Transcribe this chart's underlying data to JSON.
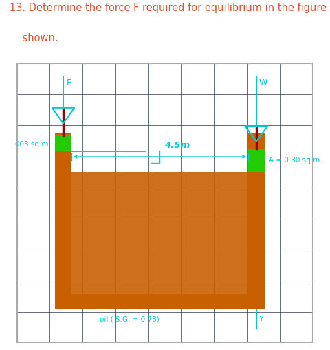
{
  "title_line1": "13. Determine the force F required for equilibrium in the figure",
  "title_line2": "    shown.",
  "title_color": "#e05030",
  "title_fontsize": 10.5,
  "bg_color": "#1b2a38",
  "border_color": "#aaaaaa",
  "cyan_color": "#00c8d4",
  "orange_color": "#c86000",
  "green_color": "#22cc00",
  "dark_red_color": "#990000",
  "label_003": "003 sq.m.",
  "label_A": "A = 0.30 sq.m.",
  "label_45m": "4.5m",
  "label_oil": "oil ( S.G. = 0.78)",
  "label_F": "F",
  "label_W": "W",
  "label_Y": "Y",
  "grid_color": "#243545"
}
